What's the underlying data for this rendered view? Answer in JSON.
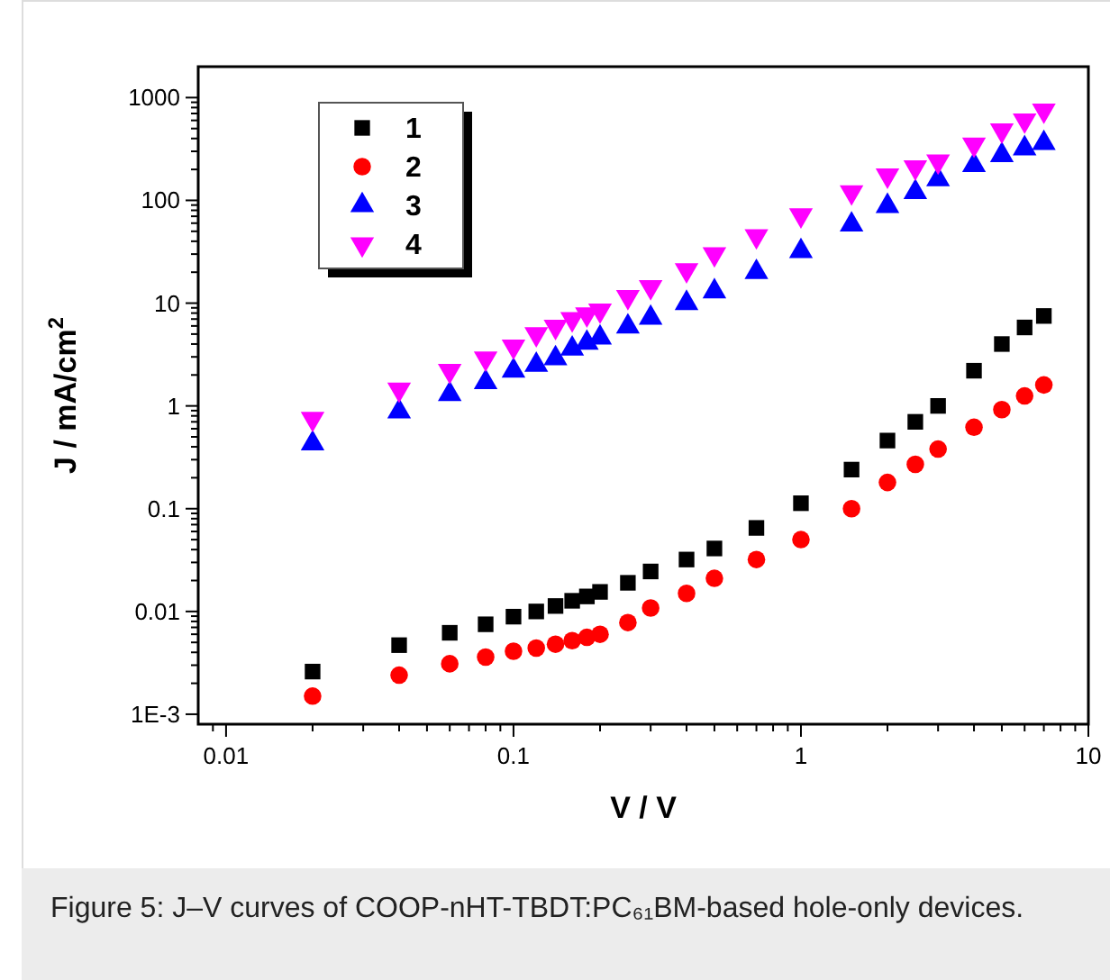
{
  "chart_data": {
    "type": "scatter",
    "xlabel": "V / V",
    "ylabel": "J / mA/cm$^{2}$",
    "log": "xy",
    "grid": false,
    "legend": "top left",
    "xlim": [
      0.008,
      10
    ],
    "ylim": [
      0.0008,
      2000
    ],
    "xticks": [
      0.01,
      0.1,
      1,
      10,
      {
        "value": 0.009,
        "label": null
      },
      {
        "value": 0.02,
        "label": null
      },
      {
        "value": 0.03,
        "label": null
      },
      {
        "value": 0.04,
        "label": null
      },
      {
        "value": 0.05,
        "label": null
      },
      {
        "value": 0.06,
        "label": null
      },
      {
        "value": 0.07,
        "label": null
      },
      {
        "value": 0.08,
        "label": null
      },
      {
        "value": 0.09,
        "label": null
      },
      {
        "value": 0.2,
        "label": null
      },
      {
        "value": 0.3,
        "label": null
      },
      {
        "value": 0.4,
        "label": null
      },
      {
        "value": 0.5,
        "label": null
      },
      {
        "value": 0.6,
        "label": null
      },
      {
        "value": 0.7,
        "label": null
      },
      {
        "value": 0.8,
        "label": null
      },
      {
        "value": 0.9,
        "label": null
      },
      {
        "value": 2,
        "label": null
      },
      {
        "value": 3,
        "label": null
      },
      {
        "value": 4,
        "label": null
      },
      {
        "value": 5,
        "label": null
      },
      {
        "value": 6,
        "label": null
      },
      {
        "value": 7,
        "label": null
      },
      {
        "value": 8,
        "label": null
      },
      {
        "value": 9,
        "label": null
      }
    ],
    "yticks": [
      {
        "value": 0.001,
        "label": "1E-3"
      },
      0.01,
      0.1,
      1,
      10,
      100,
      1000
    ],
    "x": [
      0.02,
      0.04,
      0.06,
      0.08,
      0.1,
      0.12,
      0.14,
      0.16,
      0.18,
      0.2,
      0.25,
      0.3,
      0.4,
      0.5,
      0.7,
      1,
      1.5,
      2,
      2.5,
      3,
      4,
      5,
      6,
      7
    ],
    "series": [
      {
        "name": "1",
        "color": "#000000",
        "marker": "square",
        "values": [
          0.0026,
          0.0047,
          0.0062,
          0.0075,
          0.0089,
          0.01,
          0.0113,
          0.0127,
          0.014,
          0.0155,
          0.019,
          0.0245,
          0.032,
          0.041,
          0.065,
          0.113,
          0.24,
          0.46,
          0.7,
          1.0,
          2.2,
          4.0,
          5.8,
          7.5
        ]
      },
      {
        "name": "2",
        "color": "#ff0000",
        "marker": "circle",
        "values": [
          0.0015,
          0.0024,
          0.0031,
          0.0036,
          0.0041,
          0.0044,
          0.0048,
          0.0052,
          0.0056,
          0.006,
          0.0078,
          0.0108,
          0.015,
          0.021,
          0.032,
          0.05,
          0.1,
          0.18,
          0.27,
          0.38,
          0.62,
          0.92,
          1.25,
          1.6
        ]
      },
      {
        "name": "3",
        "color": "#0000ff",
        "marker": "triangle",
        "values": [
          0.43,
          0.88,
          1.3,
          1.7,
          2.2,
          2.5,
          2.9,
          3.6,
          4.1,
          4.6,
          5.9,
          7.2,
          10,
          13,
          20,
          32,
          58,
          88,
          120,
          160,
          220,
          275,
          320,
          360
        ]
      },
      {
        "name": "4",
        "color": "#ff00ff",
        "marker": "triangle-down",
        "values": [
          0.75,
          1.45,
          2.2,
          2.9,
          3.8,
          5.0,
          5.9,
          7.0,
          7.8,
          8.5,
          11.5,
          14.4,
          21,
          30,
          45,
          72,
          120,
          175,
          210,
          240,
          350,
          480,
          600,
          750
        ]
      }
    ],
    "annotations": [
      "Figure 5: J–V curves of COOP-nHT-TBDT:PC₆₁BM-based hole-only devices."
    ]
  }
}
